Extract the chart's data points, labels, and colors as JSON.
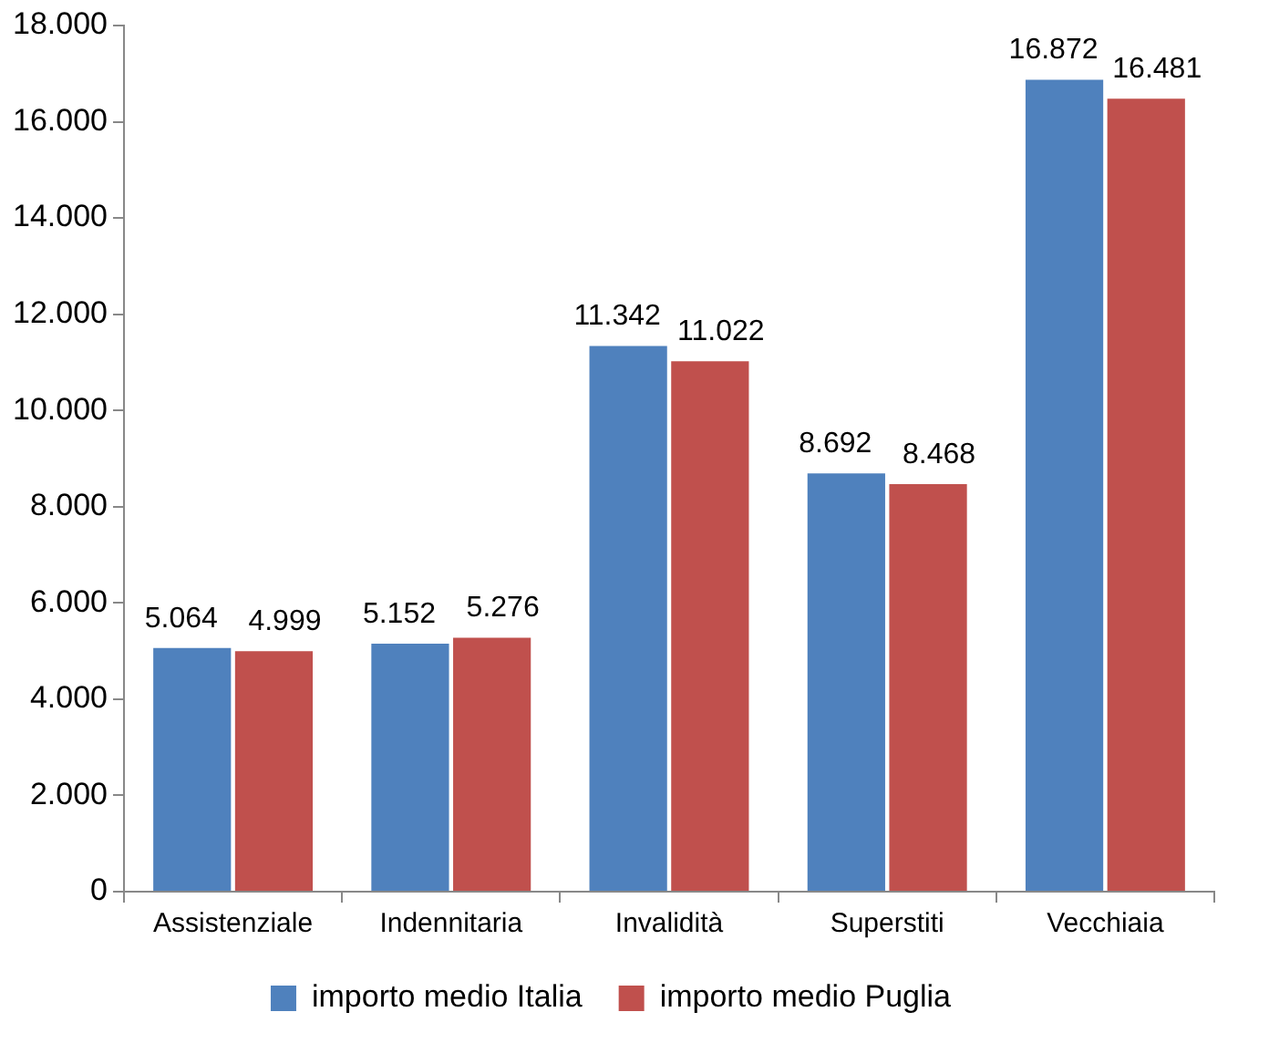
{
  "chart_data": {
    "type": "bar",
    "categories": [
      "Assistenziale",
      "Indennitaria",
      "Invalidità",
      "Superstiti",
      "Vecchiaia"
    ],
    "series": [
      {
        "name": "importo medio Italia",
        "color": "#4f81bd",
        "values": [
          5064,
          5152,
          11342,
          8692,
          16872
        ],
        "value_labels": [
          "5.064",
          "5.152",
          "11.342",
          "8.692",
          "16.872"
        ]
      },
      {
        "name": "importo medio Puglia",
        "color": "#c0504d",
        "values": [
          4999,
          5276,
          11022,
          8468,
          16481
        ],
        "value_labels": [
          "4.999",
          "5.276",
          "11.022",
          "8.468",
          "16.481"
        ]
      }
    ],
    "ylim": [
      0,
      18000
    ],
    "yticks": [
      {
        "value": 0,
        "label": "0"
      },
      {
        "value": 2000,
        "label": "2.000"
      },
      {
        "value": 4000,
        "label": "4.000"
      },
      {
        "value": 6000,
        "label": "6.000"
      },
      {
        "value": 8000,
        "label": "8.000"
      },
      {
        "value": 10000,
        "label": "10.000"
      },
      {
        "value": 12000,
        "label": "12.000"
      },
      {
        "value": 14000,
        "label": "14.000"
      },
      {
        "value": 16000,
        "label": "16.000"
      },
      {
        "value": 18000,
        "label": "18.000"
      }
    ],
    "grid": false,
    "legend": "bottom"
  }
}
